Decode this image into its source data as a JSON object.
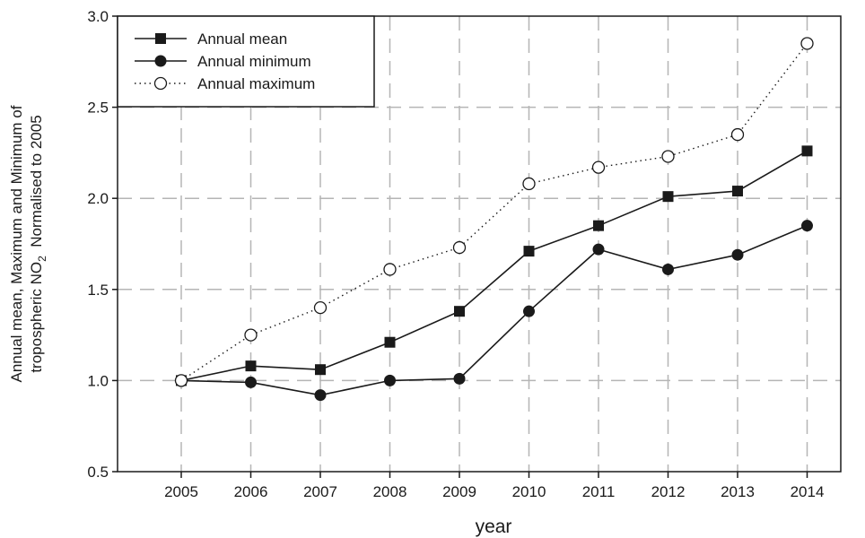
{
  "chart_data": {
    "type": "line",
    "xlabel": "year",
    "ylabel": {
      "line1": "Annual mean, Maximum and Minimum of",
      "line2_prefix": "tropospheric NO",
      "line2_sub": "2",
      "line2_suffix": "  Normalised to 2005"
    },
    "categories": [
      "2005",
      "2006",
      "2007",
      "2008",
      "2009",
      "2010",
      "2011",
      "2012",
      "2013",
      "2014"
    ],
    "ylim": [
      0.5,
      3.0
    ],
    "yticks": [
      "0.5",
      "1.0",
      "1.5",
      "2.0",
      "2.5",
      "3.0"
    ],
    "grid": true,
    "legend_position": "top-left",
    "series": [
      {
        "name": "Annual mean",
        "marker": "filled-square",
        "line": "solid",
        "values": [
          1.0,
          1.08,
          1.06,
          1.21,
          1.38,
          1.71,
          1.85,
          2.01,
          2.04,
          2.26
        ]
      },
      {
        "name": "Annual minimum",
        "marker": "filled-circle",
        "line": "solid",
        "values": [
          1.0,
          0.99,
          0.92,
          1.0,
          1.01,
          1.38,
          1.72,
          1.61,
          1.69,
          1.85
        ]
      },
      {
        "name": "Annual maximum",
        "marker": "open-circle",
        "line": "dotted",
        "values": [
          1.0,
          1.25,
          1.4,
          1.61,
          1.73,
          2.08,
          2.17,
          2.23,
          2.35,
          2.85
        ]
      }
    ],
    "colors": {
      "ink": "#1a1a1a",
      "grid": "#b5b5b5"
    }
  }
}
